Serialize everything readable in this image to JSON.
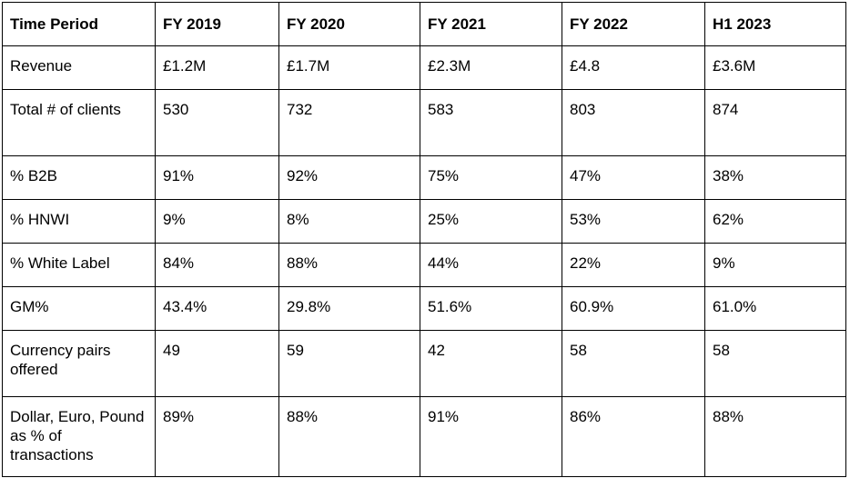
{
  "table": {
    "headers": [
      "Time Period",
      "FY 2019",
      "FY 2020",
      "FY 2021",
      "FY 2022",
      "H1 2023"
    ],
    "rows": [
      [
        "Revenue",
        "£1.2M",
        "£1.7M",
        "£2.3M",
        "£4.8",
        "£3.6M"
      ],
      [
        "Total # of clients",
        "530",
        "732",
        "583",
        "803",
        "874"
      ],
      [
        "% B2B",
        "91%",
        "92%",
        "75%",
        "47%",
        "38%"
      ],
      [
        "% HNWI",
        "9%",
        "8%",
        "25%",
        "53%",
        "62%"
      ],
      [
        "% White Label",
        "84%",
        "88%",
        "44%",
        "22%",
        "9%"
      ],
      [
        "GM%",
        "43.4%",
        "29.8%",
        "51.6%",
        "60.9%",
        "61.0%"
      ],
      [
        "Currency pairs offered",
        "49",
        "59",
        "42",
        "58",
        "58"
      ],
      [
        "Dollar, Euro, Pound as % of transactions",
        "89%",
        "88%",
        "91%",
        "86%",
        "88%"
      ]
    ]
  }
}
